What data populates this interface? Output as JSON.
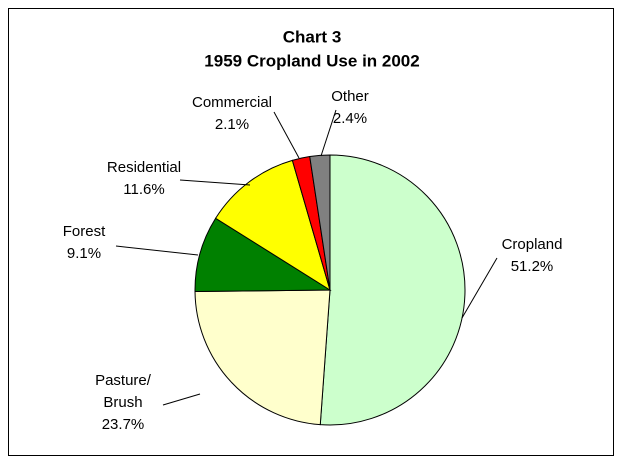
{
  "chart_data": {
    "type": "pie",
    "title": "Chart 3",
    "subtitle": "1959 Cropland Use in 2002",
    "categories": [
      "Cropland",
      "Pasture/\nBrush",
      "Forest",
      "Residential",
      "Commercial",
      "Other"
    ],
    "values": [
      51.2,
      23.7,
      9.1,
      11.6,
      2.1,
      2.4
    ],
    "value_labels": [
      "51.2%",
      "23.7%",
      "9.1%",
      "11.6%",
      "2.1%",
      "2.4%"
    ],
    "colors": [
      "#ccffcc",
      "#ffffcc",
      "#008000",
      "#ffff00",
      "#ff0000",
      "#808080"
    ]
  }
}
